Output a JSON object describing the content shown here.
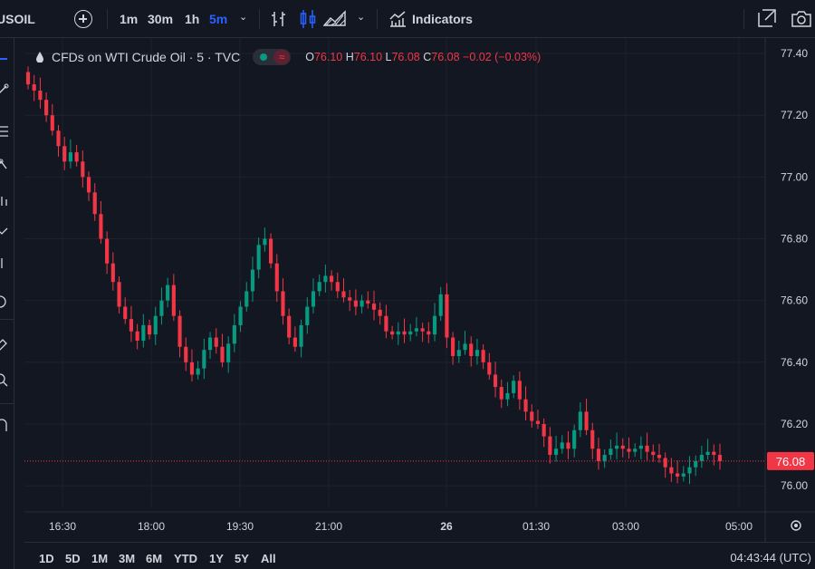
{
  "toolbar": {
    "symbol": "USOIL",
    "timeframes": [
      "1m",
      "30m",
      "1h",
      "5m"
    ],
    "active_timeframe": "5m",
    "indicators_label": "Indicators"
  },
  "legend": {
    "title": "CFDs on WTI Crude Oil · 5 · TVC",
    "open_label": "O",
    "open": "76.10",
    "high_label": "H",
    "high": "76.10",
    "low_label": "L",
    "low": "76.08",
    "close_label": "C",
    "close": "76.08",
    "change": "−0.02 (−0.03%)"
  },
  "colors": {
    "background": "#131722",
    "grid": "#1e222d",
    "up": "#089981",
    "down": "#f23645",
    "text": "#d1d4dc",
    "accent": "#2962ff"
  },
  "chart_data": {
    "type": "candlestick",
    "title": "CFDs on WTI Crude Oil · 5 · TVC",
    "x_ticks": [
      "16:30",
      "18:00",
      "19:30",
      "21:00",
      "26",
      "01:30",
      "03:00",
      "05:00"
    ],
    "y_ticks": [
      "77.40",
      "77.20",
      "77.00",
      "76.80",
      "76.60",
      "76.40",
      "76.20",
      "76.00"
    ],
    "ylim": [
      75.93,
      77.45
    ],
    "last_price": "76.08",
    "grid": true,
    "close_series": [
      77.3,
      77.28,
      77.25,
      77.2,
      77.15,
      77.1,
      77.05,
      77.08,
      77.05,
      77.0,
      76.95,
      76.88,
      76.8,
      76.72,
      76.66,
      76.58,
      76.54,
      76.5,
      76.47,
      76.52,
      76.49,
      76.55,
      76.6,
      76.65,
      76.55,
      76.45,
      76.4,
      76.36,
      76.38,
      76.44,
      76.48,
      76.45,
      76.4,
      76.46,
      76.52,
      76.58,
      76.63,
      76.7,
      76.78,
      76.8,
      76.72,
      76.63,
      76.55,
      76.48,
      76.45,
      76.52,
      76.58,
      76.63,
      76.66,
      76.68,
      76.66,
      76.63,
      76.61,
      76.6,
      76.58,
      76.6,
      76.59,
      76.57,
      76.55,
      76.5,
      76.49,
      76.5,
      76.49,
      76.5,
      76.51,
      76.5,
      76.49,
      76.55,
      76.62,
      76.48,
      76.42,
      76.44,
      76.46,
      76.42,
      76.44,
      76.4,
      76.36,
      76.32,
      76.28,
      76.3,
      76.34,
      76.28,
      76.24,
      76.21,
      76.2,
      76.16,
      76.1,
      76.12,
      76.14,
      76.12,
      76.18,
      76.24,
      76.18,
      76.12,
      76.08,
      76.1,
      76.12,
      76.13,
      76.12,
      76.11,
      76.12,
      76.13,
      76.11,
      76.1,
      76.09,
      76.06,
      76.04,
      76.03,
      76.04,
      76.06,
      76.08,
      76.1,
      76.11,
      76.1,
      76.08
    ]
  },
  "bottom": {
    "ranges": [
      "1D",
      "5D",
      "1M",
      "3M",
      "6M",
      "YTD",
      "1Y",
      "5Y",
      "All"
    ],
    "clock": "04:43:44 (UTC)"
  }
}
